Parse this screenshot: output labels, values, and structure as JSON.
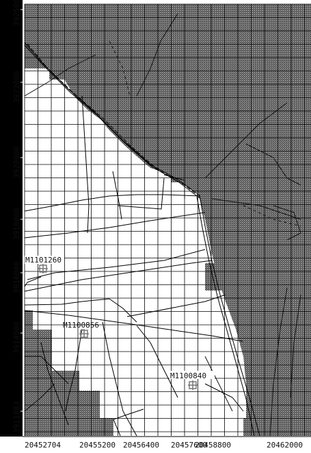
{
  "colors": {
    "axis_band": "#000000",
    "inactive_hatch_dark": "#4a4a4a",
    "inactive_hatch_light": "#c8c8c8",
    "active_cell": "#ffffff",
    "grid_line": "#000000",
    "well_marker": "#8a8a8a"
  },
  "axes": {
    "y_ticks": [
      "3925000",
      "3922000",
      "3920000",
      "3918000",
      "3916000",
      "3914000",
      "3911083"
    ],
    "x_ticks": [
      "20452704",
      "20455200",
      "20456400",
      "20457600",
      "20458800",
      "20462000"
    ]
  },
  "wells": [
    {
      "label": "M1101260",
      "icon": "well-icon"
    },
    {
      "label": "M1100856",
      "icon": "well-icon"
    },
    {
      "label": "M1100840",
      "icon": "well-icon"
    }
  ]
}
